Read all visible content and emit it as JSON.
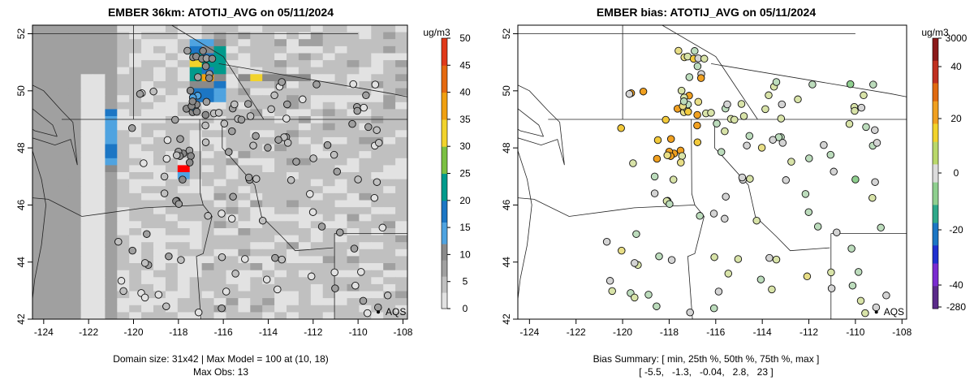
{
  "chart_data": [
    {
      "type": "heatmap",
      "title": "EMBER 36km: ATOTIJ_AVG on 05/11/2024",
      "legend_title": "ug/m3",
      "legend_placement": "right",
      "colorbar_ticks": [
        0,
        5,
        10,
        15,
        20,
        25,
        30,
        35,
        40,
        45,
        50
      ],
      "colorbar_range": [
        0,
        50
      ],
      "xlim": [
        -124.5,
        -107.8
      ],
      "ylim": [
        42,
        52.3
      ],
      "x_ticks": [
        -124,
        -122,
        -120,
        -118,
        -116,
        -114,
        -112,
        -110,
        -108
      ],
      "y_ticks": [
        42,
        44,
        46,
        48,
        50,
        52
      ],
      "annotation": "AQS",
      "footer": [
        "Domain size: 31x42 | Max Model = 100 at (10, 18)",
        "Max Obs: 13"
      ]
    },
    {
      "type": "scatter",
      "title": "EMBER bias: ATOTIJ_AVG on 05/11/2024",
      "legend_title": "ug/m3",
      "legend_placement": "right",
      "colorbar_ticks": [
        3000,
        40,
        20,
        0,
        -20,
        -40,
        -280
      ],
      "xlim": [
        -124.5,
        -107.8
      ],
      "ylim": [
        42,
        52.3
      ],
      "x_ticks": [
        -124,
        -122,
        -120,
        -118,
        -116,
        -114,
        -112,
        -110,
        -108
      ],
      "y_ticks": [
        42,
        44,
        46,
        48,
        50,
        52
      ],
      "annotation": "AQS",
      "footer": [
        "Bias Summary: [ min, 25th %, 50th %, 75th %, max ]",
        "[ -5.5,   -1.3,   -0.04,   2.8,   23 ]"
      ],
      "bias_summary": {
        "min": -5.5,
        "p25": -1.3,
        "p50": -0.04,
        "p75": 2.8,
        "max": 23
      }
    }
  ]
}
